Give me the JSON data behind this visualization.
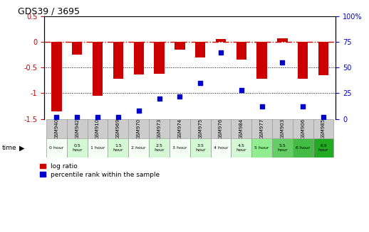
{
  "title": "GDS39 / 3695",
  "samples": [
    "GSM940",
    "GSM942",
    "GSM910",
    "GSM969",
    "GSM970",
    "GSM973",
    "GSM974",
    "GSM975",
    "GSM976",
    "GSM984",
    "GSM977",
    "GSM903",
    "GSM906",
    "GSM985"
  ],
  "time_labels": [
    "0 hour",
    "0.5\nhour",
    "1 hour",
    "1.5\nhour",
    "2 hour",
    "2.5\nhour",
    "3 hour",
    "3.5\nhour",
    "4 hour",
    "4.5\nhour",
    "5 hour",
    "5.5\nhour",
    "6 hour",
    "6.5\nhour"
  ],
  "log_ratio": [
    -1.35,
    -0.25,
    -1.05,
    -0.72,
    -0.63,
    -0.62,
    -0.15,
    -0.3,
    0.05,
    -0.35,
    -0.72,
    0.07,
    -0.72,
    -0.65
  ],
  "percentile_rank": [
    2,
    2,
    2,
    2,
    8,
    20,
    22,
    35,
    65,
    28,
    12,
    55,
    12,
    2
  ],
  "ylim_left": [
    -1.5,
    0.5
  ],
  "ylim_right": [
    0,
    100
  ],
  "yticks_left": [
    -1.5,
    -1.0,
    -0.5,
    0.0,
    0.5
  ],
  "yticks_right": [
    0,
    25,
    50,
    75,
    100
  ],
  "bar_color": "#cc0000",
  "dot_color": "#0000cc",
  "dashed_color": "#cc0000",
  "grid_color": "#000000",
  "time_colors": [
    "#f5fff5",
    "#d4f7d4",
    "#f5fff5",
    "#d4f7d4",
    "#f5fff5",
    "#d4f7d4",
    "#f5fff5",
    "#d4f7d4",
    "#f5fff5",
    "#d4f7d4",
    "#90ee90",
    "#66cc66",
    "#44bb44",
    "#22aa22"
  ],
  "bar_width": 0.5,
  "figsize": [
    5.18,
    3.27
  ],
  "dpi": 100
}
